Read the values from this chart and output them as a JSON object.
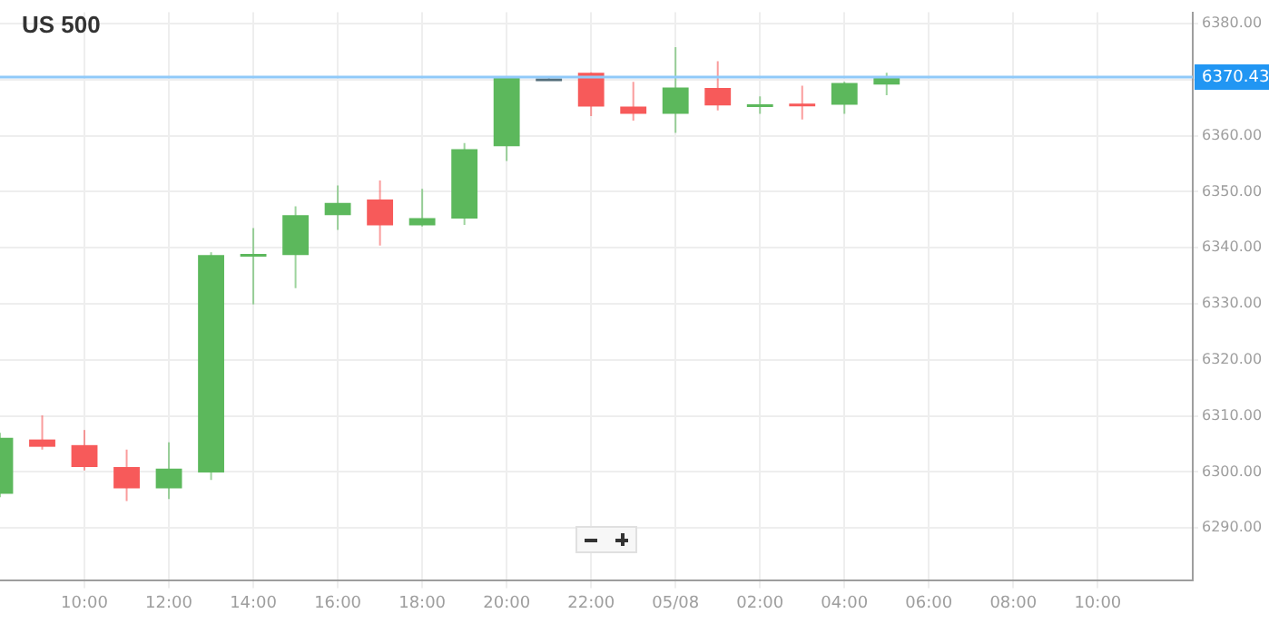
{
  "chart_data": {
    "type": "candlestick",
    "title": "US 500",
    "x": [
      "--05-07T08:00",
      "--05-07T09:00",
      "--05-07T10:00",
      "--05-07T11:00",
      "--05-07T12:00",
      "--05-07T13:00",
      "--05-07T14:00",
      "--05-07T15:00",
      "--05-07T16:00",
      "--05-07T17:00",
      "--05-07T18:00",
      "--05-07T19:00",
      "--05-07T20:00",
      "--05-07T21:00",
      "--05-07T22:00",
      "--05-07T23:00",
      "--05-08T00:00",
      "--05-08T01:00",
      "--05-08T02:00",
      "--05-08T03:00",
      "--05-08T04:00",
      "--05-08T05:00"
    ],
    "ohlc": [
      [
        6296.1,
        6307,
        6295.5,
        6306.1
      ],
      [
        6305.8,
        6310.1,
        6304,
        6304.5
      ],
      [
        6304.8,
        6307.5,
        6300.3,
        6300.9
      ],
      [
        6300.9,
        6304,
        6294.8,
        6297.1
      ],
      [
        6297.1,
        6305.3,
        6295.2,
        6300.6
      ],
      [
        6299.9,
        6339.2,
        6298.6,
        6338.7
      ],
      [
        6338.7,
        6343.5,
        6329.9,
        6338.9
      ],
      [
        6338.7,
        6347.4,
        6332.8,
        6345.8
      ],
      [
        6345.8,
        6351.1,
        6343.2,
        6348
      ],
      [
        6348.6,
        6352,
        6340.4,
        6344
      ],
      [
        6344,
        6350.5,
        6343.8,
        6345.3
      ],
      [
        6345.2,
        6358.7,
        6344.1,
        6357.6
      ],
      [
        6358.1,
        6370.6,
        6355.5,
        6370.4
      ],
      [
        6370.2,
        6370.3,
        6370.1,
        6370.2
      ],
      [
        6371.2,
        6371.3,
        6363.5,
        6365.2
      ],
      [
        6365.2,
        6369.6,
        6362.7,
        6363.9
      ],
      [
        6363.9,
        6375.8,
        6360.5,
        6368.6
      ],
      [
        6368.5,
        6373.3,
        6364.5,
        6365.4
      ],
      [
        6365.2,
        6367,
        6363.9,
        6365.6
      ],
      [
        6365.7,
        6368.9,
        6362.9,
        6365.4
      ],
      [
        6365.5,
        6369.6,
        6363.9,
        6369.4
      ],
      [
        6369.1,
        6371.2,
        6367.2,
        6370.4
      ]
    ],
    "colors": [
      "#5cb85c",
      "#f75a5a",
      "#f75a5a",
      "#f75a5a",
      "#5cb85c",
      "#5cb85c",
      "#5cb85c",
      "#5cb85c",
      "#5cb85c",
      "#f75a5a",
      "#5cb85c",
      "#5cb85c",
      "#5cb85c",
      "#546e7a",
      "#f75a5a",
      "#f75a5a",
      "#5cb85c",
      "#f75a5a",
      "#5cb85c",
      "#f75a5a",
      "#5cb85c",
      "#5cb85c"
    ],
    "xlim": [
      "--05-07T08:00",
      "--05-08T12:15"
    ],
    "xticks": [
      {
        "value": "--05-07T10:00",
        "label": "10:00"
      },
      {
        "value": "--05-07T12:00",
        "label": "12:00"
      },
      {
        "value": "--05-07T14:00",
        "label": "14:00"
      },
      {
        "value": "--05-07T16:00",
        "label": "16:00"
      },
      {
        "value": "--05-07T18:00",
        "label": "18:00"
      },
      {
        "value": "--05-07T20:00",
        "label": "20:00"
      },
      {
        "value": "--05-07T22:00",
        "label": "22:00"
      },
      {
        "value": "--05-08T00:00",
        "label": "05/08"
      },
      {
        "value": "--05-08T02:00",
        "label": "02:00"
      },
      {
        "value": "--05-08T04:00",
        "label": "04:00"
      },
      {
        "value": "--05-08T06:00",
        "label": "06:00"
      },
      {
        "value": "--05-08T08:00",
        "label": "08:00"
      },
      {
        "value": "--05-08T10:00",
        "label": "10:00"
      }
    ],
    "ylim": [
      6280.6,
      6382
    ],
    "yticks": [
      {
        "value": 6290,
        "label": "6290.00"
      },
      {
        "value": 6300,
        "label": "6300.00"
      },
      {
        "value": 6310,
        "label": "6310.00"
      },
      {
        "value": 6320,
        "label": "6320.00"
      },
      {
        "value": 6330,
        "label": "6330.00"
      },
      {
        "value": 6340,
        "label": "6340.00"
      },
      {
        "value": 6350,
        "label": "6350.00"
      },
      {
        "value": 6360,
        "label": "6360.00"
      },
      {
        "value": 6370,
        "label": null
      },
      {
        "value": 6380,
        "label": "6380.00"
      }
    ],
    "ref_lines": [
      {
        "axis": "y",
        "value": 6370.43,
        "label": "6370.43",
        "color": "#90caf9"
      }
    ],
    "grid": true,
    "legend": false
  }
}
